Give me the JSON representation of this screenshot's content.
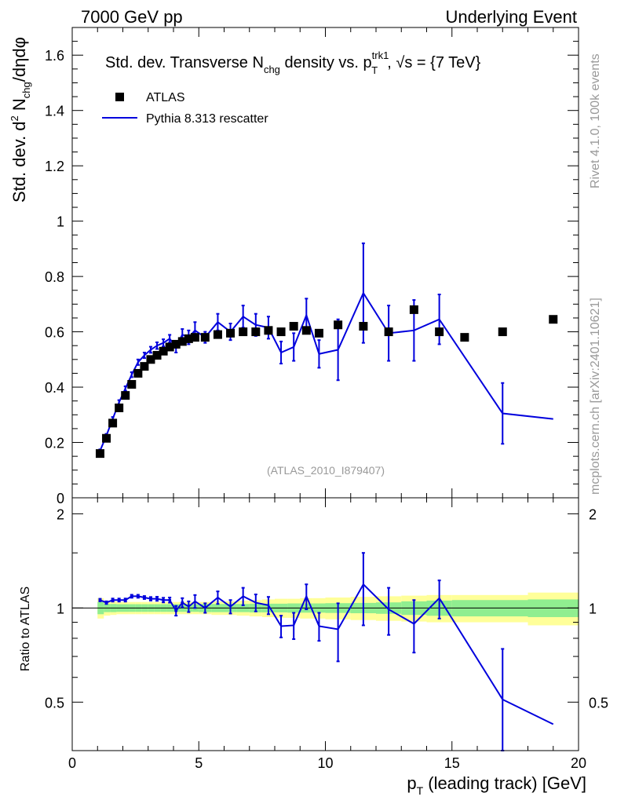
{
  "header": {
    "left": "7000 GeV pp",
    "right": "Underlying Event"
  },
  "side_labels": {
    "rivet": "Rivet 4.1.0,  100k events",
    "mcplots": "mcplots.cern.ch [arXiv:2401.10621]"
  },
  "chart_data": {
    "type": "scatter+line",
    "title": "Std. dev. Transverse N_chg density vs. p_T^trk1, √s = {7 TeV}",
    "title_parts": {
      "a": "Std. dev. Transverse N",
      "a_sub": "chg",
      "b": " density vs. p",
      "b_sup": "trk1",
      "b_sub": "T",
      "c": ", √s = {7 TeV}"
    },
    "analysis_id": "(ATLAS_2010_I879407)",
    "xlabel": "p_T (leading track) [GeV]",
    "xlabel_parts": {
      "a": "p",
      "a_sub": "T",
      "b": " (leading track) [GeV]"
    },
    "ylabel": "Std. dev. d² N_chg/dηdφ",
    "ylabel_parts": {
      "a": "Std. dev. d",
      "a_sup": "2",
      "b": " N",
      "b_sub": "chg",
      "c": "/dηdφ"
    },
    "ratio_ylabel": "Ratio to ATLAS",
    "xlim": [
      0,
      20
    ],
    "ylim": [
      0,
      1.7
    ],
    "ratio_ylim": [
      0.35,
      2.25
    ],
    "x_ticks": [
      0,
      5,
      10,
      15,
      20
    ],
    "x_tick_labels": [
      "0",
      "5",
      "10",
      "15",
      "20"
    ],
    "y_ticks": [
      0,
      0.2,
      0.4,
      0.6,
      0.8,
      1,
      1.2,
      1.4,
      1.6
    ],
    "y_tick_labels": [
      "0",
      "0.2",
      "0.4",
      "0.6",
      "0.8",
      "1",
      "1.2",
      "1.4",
      "1.6"
    ],
    "ratio_ticks": [
      0.5,
      1,
      2
    ],
    "ratio_tick_labels": [
      "0.5",
      "1",
      "2"
    ],
    "legend": [
      {
        "name": "ATLAS",
        "style": "marker"
      },
      {
        "name": "Pythia 8.313 rescatter",
        "style": "line"
      }
    ],
    "legend_location": "top-left",
    "colors": {
      "data": "#000000",
      "mc": "#0000dd",
      "band_stat": "#90ee90",
      "band_syst": "#ffff99"
    },
    "data_series": {
      "name": "ATLAS",
      "x": [
        1.1,
        1.35,
        1.6,
        1.85,
        2.1,
        2.35,
        2.6,
        2.85,
        3.1,
        3.35,
        3.6,
        3.85,
        4.1,
        4.35,
        4.6,
        4.85,
        5.25,
        5.75,
        6.25,
        6.75,
        7.25,
        7.75,
        8.25,
        8.75,
        9.25,
        9.75,
        10.5,
        11.5,
        12.5,
        13.5,
        14.5,
        15.5,
        17.0,
        19.0
      ],
      "y": [
        0.16,
        0.215,
        0.27,
        0.325,
        0.37,
        0.41,
        0.45,
        0.475,
        0.5,
        0.515,
        0.53,
        0.545,
        0.555,
        0.565,
        0.575,
        0.58,
        0.58,
        0.59,
        0.595,
        0.6,
        0.6,
        0.605,
        0.6,
        0.62,
        0.605,
        0.595,
        0.625,
        0.62,
        0.6,
        0.68,
        0.6,
        0.58,
        0.6,
        0.645
      ]
    },
    "mc_series": {
      "name": "Pythia 8.313 rescatter",
      "x": [
        1.1,
        1.35,
        1.6,
        1.85,
        2.1,
        2.35,
        2.6,
        2.85,
        3.1,
        3.35,
        3.6,
        3.85,
        4.1,
        4.35,
        4.6,
        4.85,
        5.25,
        5.75,
        6.25,
        6.75,
        7.25,
        7.75,
        8.25,
        8.75,
        9.25,
        9.75,
        10.5,
        11.5,
        12.5,
        13.5,
        14.5,
        17.0,
        19.0
      ],
      "y": [
        0.17,
        0.225,
        0.285,
        0.345,
        0.395,
        0.445,
        0.49,
        0.515,
        0.535,
        0.55,
        0.56,
        0.575,
        0.545,
        0.59,
        0.58,
        0.605,
        0.58,
        0.635,
        0.6,
        0.655,
        0.625,
        0.615,
        0.525,
        0.545,
        0.66,
        0.52,
        0.535,
        0.74,
        0.595,
        0.605,
        0.645,
        0.305,
        0.285
      ],
      "yerr": [
        0.005,
        0.006,
        0.007,
        0.008,
        0.008,
        0.009,
        0.01,
        0.01,
        0.011,
        0.012,
        0.013,
        0.014,
        0.02,
        0.02,
        0.025,
        0.03,
        0.02,
        0.03,
        0.03,
        0.04,
        0.04,
        0.04,
        0.04,
        0.05,
        0.06,
        0.05,
        0.11,
        0.18,
        0.1,
        0.11,
        0.09,
        0.11,
        0
      ],
      "ratio": [
        1.06,
        1.04,
        1.06,
        1.06,
        1.06,
        1.09,
        1.09,
        1.08,
        1.07,
        1.07,
        1.06,
        1.06,
        0.98,
        1.04,
        1.01,
        1.05,
        1.0,
        1.08,
        1.01,
        1.09,
        1.04,
        1.02,
        0.875,
        0.88,
        1.09,
        0.875,
        0.855,
        1.19,
        0.99,
        0.89,
        1.075,
        0.51,
        0.425
      ],
      "ratio_err": [
        0.01,
        0.01,
        0.012,
        0.012,
        0.012,
        0.012,
        0.012,
        0.012,
        0.014,
        0.016,
        0.018,
        0.02,
        0.035,
        0.035,
        0.04,
        0.05,
        0.035,
        0.05,
        0.05,
        0.07,
        0.065,
        0.065,
        0.07,
        0.085,
        0.1,
        0.09,
        0.18,
        0.31,
        0.17,
        0.17,
        0.15,
        0.23,
        0
      ]
    },
    "ratio_band_edges": [
      1.0,
      1.25,
      1.5,
      1.75,
      2.0,
      2.25,
      2.5,
      2.75,
      3.0,
      3.25,
      3.5,
      3.75,
      4.0,
      4.25,
      4.5,
      4.75,
      5.0,
      5.5,
      6.0,
      6.5,
      7.0,
      7.5,
      8.0,
      8.5,
      9.0,
      9.5,
      10.0,
      11.0,
      12.0,
      13.0,
      14.0,
      15.0,
      16.0,
      18.0,
      20.0
    ],
    "ratio_band_stat": [
      0.045,
      0.03,
      0.03,
      0.028,
      0.028,
      0.028,
      0.028,
      0.028,
      0.028,
      0.028,
      0.028,
      0.028,
      0.028,
      0.028,
      0.028,
      0.028,
      0.03,
      0.03,
      0.03,
      0.03,
      0.032,
      0.032,
      0.032,
      0.034,
      0.034,
      0.034,
      0.036,
      0.038,
      0.042,
      0.05,
      0.056,
      0.06,
      0.06,
      0.065,
      0.065
    ],
    "ratio_band_syst": [
      0.075,
      0.055,
      0.05,
      0.045,
      0.045,
      0.045,
      0.045,
      0.045,
      0.045,
      0.045,
      0.045,
      0.045,
      0.045,
      0.045,
      0.045,
      0.045,
      0.045,
      0.05,
      0.05,
      0.055,
      0.06,
      0.065,
      0.07,
      0.07,
      0.075,
      0.075,
      0.08,
      0.085,
      0.09,
      0.095,
      0.1,
      0.1,
      0.1,
      0.12,
      0.12
    ]
  }
}
